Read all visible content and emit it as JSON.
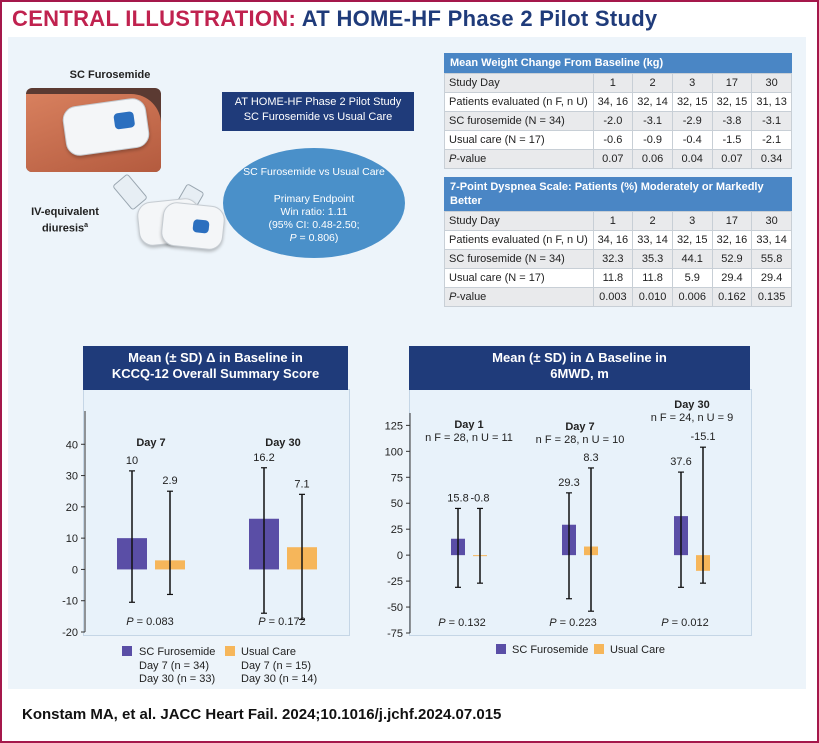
{
  "title_prefix": "CENTRAL ILLUSTRATION:",
  "title_main": "AT HOME-HF Phase 2 Pilot Study",
  "device_labels": {
    "sc": "SC Furosemide",
    "iv": "IV-equivalent",
    "iv2": "diuresis",
    "iv_sup": "a"
  },
  "study_box": {
    "line1": "AT HOME-HF Phase 2 Pilot Study",
    "line2": "SC Furosemide vs Usual Care"
  },
  "ellipse": {
    "title": "SC Furosemide vs Usual Care",
    "line1": "Primary Endpoint",
    "line2": "Win ratio: 1.11",
    "line3": "(95% CI: 0.48-2.50;",
    "line4_p": "P",
    "line4_rest": " = 0.806)"
  },
  "weight_table": {
    "title": "Mean Weight Change From Baseline (kg)",
    "rows": [
      [
        "Study Day",
        "1",
        "2",
        "3",
        "17",
        "30"
      ],
      [
        "Patients evaluated (n F, n U)",
        "34, 16",
        "32, 14",
        "32, 15",
        "32, 15",
        "31, 13"
      ],
      [
        "SC furosemide (N = 34)",
        "-2.0",
        "-3.1",
        "-2.9",
        "-3.8",
        "-3.1"
      ],
      [
        "Usual care (N = 17)",
        "-0.6",
        "-0.9",
        "-0.4",
        "-1.5",
        "-2.1"
      ],
      [
        "P-value",
        "0.07",
        "0.06",
        "0.04",
        "0.07",
        "0.34"
      ]
    ]
  },
  "dyspnea_table": {
    "title": "7-Point Dyspnea Scale: Patients (%) Moderately or Markedly Better",
    "rows": [
      [
        "Study Day",
        "1",
        "2",
        "3",
        "17",
        "30"
      ],
      [
        "Patients evaluated (n F, n U)",
        "34, 16",
        "33, 14",
        "32, 15",
        "32, 16",
        "33, 14"
      ],
      [
        "SC furosemide (N = 34)",
        "32.3",
        "35.3",
        "44.1",
        "52.9",
        "55.8"
      ],
      [
        "Usual care (N = 17)",
        "11.8",
        "11.8",
        "5.9",
        "29.4",
        "29.4"
      ],
      [
        "P-value",
        "0.003",
        "0.010",
        "0.006",
        "0.162",
        "0.135"
      ]
    ]
  },
  "colors": {
    "sc": "#5a4ea6",
    "uc": "#f6b65a",
    "navy": "#1f3b7a",
    "accent": "#c0224f"
  },
  "chart_data": [
    {
      "type": "bar",
      "title": "Mean (± SD) Δ in Baseline in KCCQ-12 Overall Summary Score",
      "title_line1": "Mean (± SD) Δ in Baseline in",
      "title_line2": "KCCQ-12 Overall Summary Score",
      "ylim": [
        -20,
        50
      ],
      "yticks": [
        -20,
        -10,
        0,
        10,
        20,
        30,
        40
      ],
      "grid": false,
      "groups": [
        {
          "label": "Day 7",
          "p_label": "P",
          "p_value": " = 0.083",
          "bars": [
            {
              "series": "SC Furosemide",
              "value": 10,
              "label": "10",
              "err_low": -10.5,
              "err_high": 31.5
            },
            {
              "series": "Usual Care",
              "value": 2.9,
              "label": "2.9",
              "err_low": -8,
              "err_high": 25
            }
          ]
        },
        {
          "label": "Day 30",
          "p_label": "P",
          "p_value": " = 0.172",
          "bars": [
            {
              "series": "SC Furosemide",
              "value": 16.2,
              "label": "16.2",
              "err_low": -14,
              "err_high": 32.5
            },
            {
              "series": "Usual Care",
              "value": 7.1,
              "label": "7.1",
              "err_low": -16,
              "err_high": 24
            }
          ]
        }
      ],
      "legend": {
        "sc_label": "SC Furosemide",
        "uc_label": "Usual Care",
        "sc_n1": "Day 7 (n = 34)",
        "sc_n2": "Day 30 (n = 33)",
        "uc_n1": "Day 7 (n = 15)",
        "uc_n2": "Day 30 (n = 14)"
      }
    },
    {
      "type": "bar",
      "title": "Mean (± SD) in Δ Baseline in 6MWD, m",
      "title_line1": "Mean (± SD) in Δ Baseline in",
      "title_line2": "6MWD, m",
      "ylim": [
        -75,
        135
      ],
      "yticks": [
        -75,
        -50,
        -25,
        0,
        25,
        50,
        75,
        100,
        125
      ],
      "grid": false,
      "groups": [
        {
          "label": "Day 1",
          "sublabel": "n F = 28, n U = 11",
          "p_label": "P",
          "p_value": " = 0.132",
          "bars": [
            {
              "series": "SC Furosemide",
              "value": 15.8,
              "label": "15.8",
              "err_low": -31,
              "err_high": 45
            },
            {
              "series": "Usual Care",
              "value": -0.8,
              "label": "-0.8",
              "err_low": -27,
              "err_high": 45
            }
          ]
        },
        {
          "label": "Day 7",
          "sublabel": "n F = 28, n U = 10",
          "p_label": "P",
          "p_value": " = 0.223",
          "bars": [
            {
              "series": "SC Furosemide",
              "value": 29.3,
              "label": "29.3",
              "err_low": -42,
              "err_high": 60
            },
            {
              "series": "Usual Care",
              "value": 8.3,
              "label": "8.3",
              "err_low": -54,
              "err_high": 84
            }
          ]
        },
        {
          "label": "Day 30",
          "sublabel": "n F = 24, n U = 9",
          "p_label": "P",
          "p_value": " = 0.012",
          "bars": [
            {
              "series": "SC Furosemide",
              "value": 37.6,
              "label": "37.6",
              "err_low": -31,
              "err_high": 80
            },
            {
              "series": "Usual Care",
              "value": -15.1,
              "label": "-15.1",
              "err_low": -27,
              "err_high": 104
            }
          ]
        }
      ],
      "legend": {
        "sc_label": "SC Furosemide",
        "uc_label": "Usual Care"
      }
    }
  ],
  "citation": "Konstam MA, et al. JACC Heart Fail. 2024;10.1016/j.jchf.2024.07.015"
}
